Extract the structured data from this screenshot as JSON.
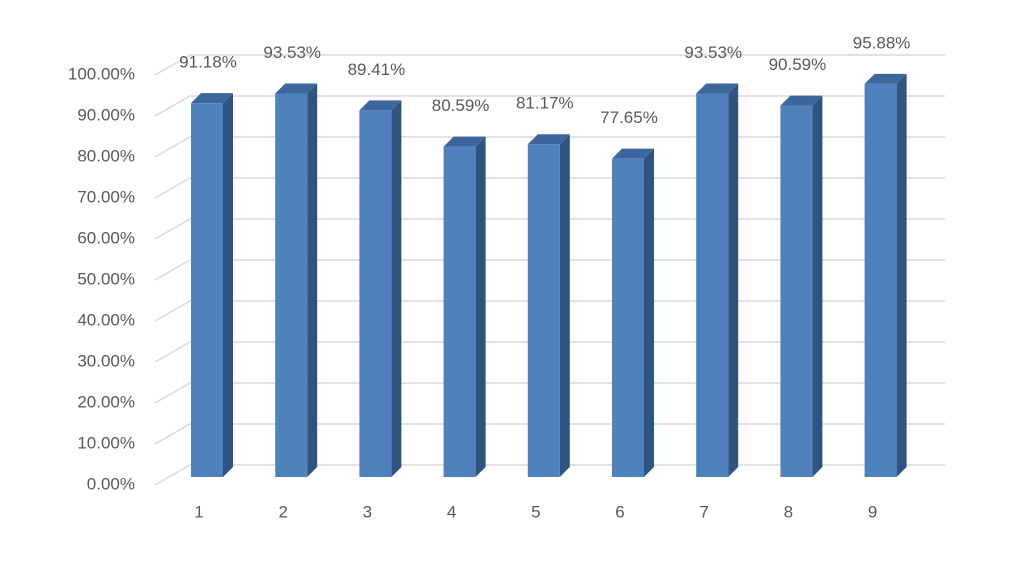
{
  "chart_data": {
    "type": "bar3d",
    "categories": [
      "1",
      "2",
      "3",
      "4",
      "5",
      "6",
      "7",
      "8",
      "9"
    ],
    "values": [
      91.18,
      93.53,
      89.41,
      80.59,
      81.17,
      77.65,
      93.53,
      90.59,
      95.88
    ],
    "value_labels": [
      "91.18%",
      "93.53%",
      "89.41%",
      "80.59%",
      "81.17%",
      "77.65%",
      "93.53%",
      "90.59%",
      "95.88%"
    ],
    "color": "#4f81bd",
    "ylim": [
      0,
      100
    ],
    "yticks": [
      {
        "value": 0,
        "label": "0.00%"
      },
      {
        "value": 10,
        "label": "10.00%"
      },
      {
        "value": 20,
        "label": "20.00%"
      },
      {
        "value": 30,
        "label": "30.00%"
      },
      {
        "value": 40,
        "label": "40.00%"
      },
      {
        "value": 50,
        "label": "50.00%"
      },
      {
        "value": 60,
        "label": "60.00%"
      },
      {
        "value": 70,
        "label": "70.00%"
      },
      {
        "value": 80,
        "label": "80.00%"
      },
      {
        "value": 90,
        "label": "90.00%"
      },
      {
        "value": 100,
        "label": "100.00%"
      }
    ],
    "grid": true
  }
}
